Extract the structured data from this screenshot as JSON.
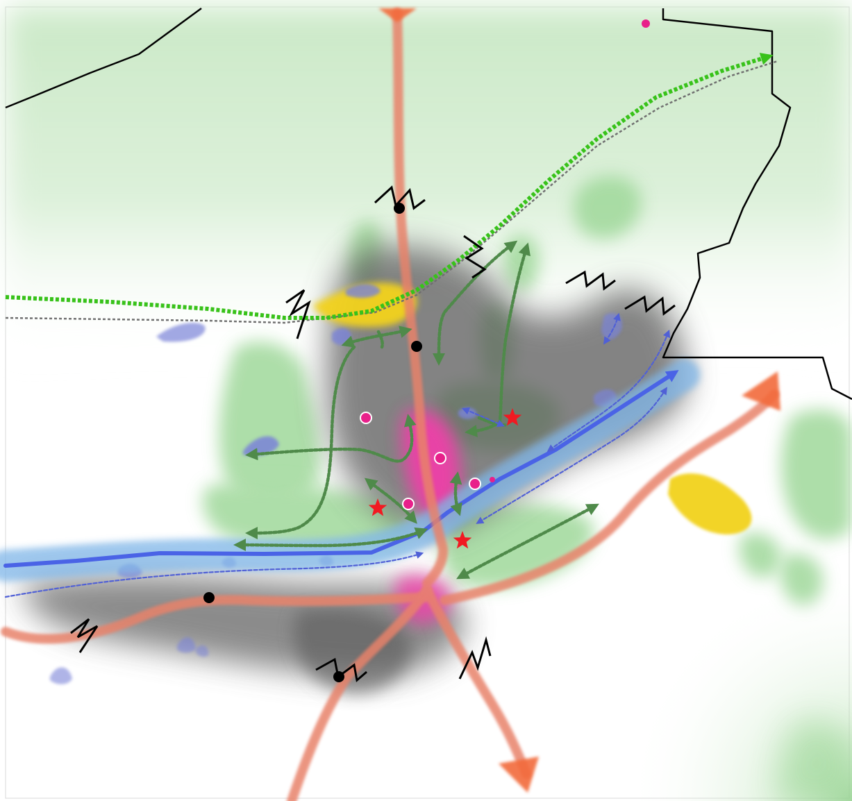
{
  "map": {
    "legend_visible": false,
    "colors": {
      "background": "#ffffff",
      "boundary": "#000000",
      "road_corridor": "#e8826a",
      "road_arrow_head": "#f26b3a",
      "river": "#4a63e6",
      "river_buffer": "#7fb6e8",
      "green_area": "#9fd89a",
      "light_green_wash": "#cdeccb",
      "urban_fabric": "#5a5a5a",
      "centre": "#ee3fa8",
      "yellow_area": "#f2d21a",
      "water_body": "#7a83d8",
      "green_link": "#4f8a4a",
      "primary_green_route": "#38c21a",
      "gray_route": "#707070",
      "blue_link": "#5060d6",
      "node_dot": "#000000",
      "poi_dot": "#e8208a",
      "star": "#f11a22",
      "barrier_symbol": "#000000"
    },
    "symbols": {
      "nodes": "black-dot",
      "points_of_interest": "pink-dot",
      "landmarks": "red-star",
      "barriers": "zigzag",
      "routes": "dotted-arrow"
    }
  }
}
